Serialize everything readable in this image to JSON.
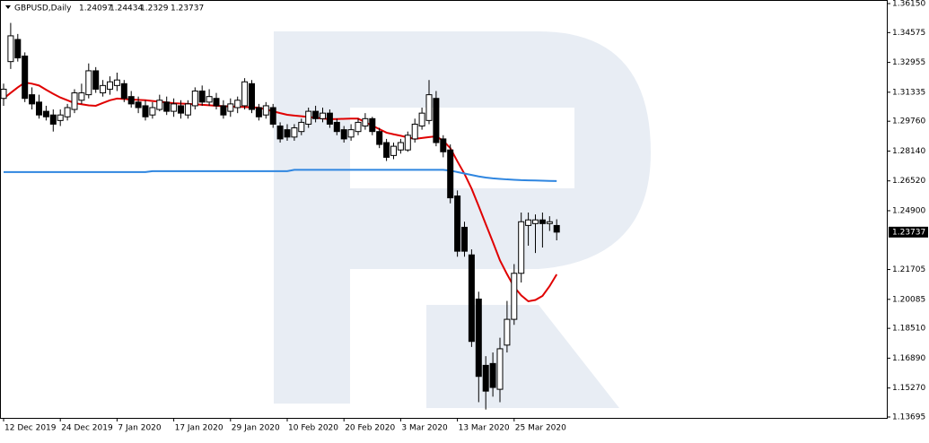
{
  "chart_data": {
    "type": "candlestick",
    "title": "GBPUSD,Daily",
    "categories": [
      "12 Dec 2019",
      null,
      null,
      null,
      null,
      null,
      null,
      null,
      "24 Dec 2019",
      null,
      null,
      null,
      null,
      null,
      null,
      null,
      "7 Jan 2020",
      null,
      null,
      null,
      null,
      null,
      null,
      null,
      "17 Jan 2020",
      null,
      null,
      null,
      null,
      null,
      null,
      null,
      "29 Jan 2020",
      null,
      null,
      null,
      null,
      null,
      null,
      null,
      "10 Feb 2020",
      null,
      null,
      null,
      null,
      null,
      null,
      null,
      "20 Feb 2020",
      null,
      null,
      null,
      null,
      null,
      null,
      null,
      "3 Mar 2020",
      null,
      null,
      null,
      null,
      null,
      null,
      null,
      "13 Mar 2020",
      null,
      null,
      null,
      null,
      null,
      null,
      null,
      "25 Mar 2020",
      null,
      null,
      null,
      null,
      null,
      null
    ],
    "open": [
      1.31,
      1.33,
      1.342,
      1.333,
      1.312,
      1.308,
      1.303,
      1.301,
      1.298,
      1.3,
      1.304,
      1.309,
      1.312,
      1.325,
      1.313,
      1.315,
      1.317,
      1.318,
      1.311,
      1.308,
      1.306,
      1.301,
      1.304,
      1.308,
      1.303,
      1.306,
      1.301,
      1.306,
      1.314,
      1.308,
      1.31,
      1.306,
      1.303,
      1.305,
      1.306,
      1.318,
      1.305,
      1.301,
      1.305,
      1.295,
      1.293,
      1.289,
      1.292,
      1.296,
      1.303,
      1.299,
      1.302,
      1.297,
      1.293,
      1.289,
      1.292,
      1.295,
      1.299,
      1.292,
      1.286,
      1.279,
      1.282,
      1.282,
      1.288,
      1.295,
      1.298,
      1.31,
      1.288,
      1.282,
      1.257,
      1.24,
      1.225,
      1.201,
      1.165,
      1.166,
      1.152,
      1.176,
      1.19,
      1.215,
      1.241,
      1.242,
      1.244,
      1.242,
      1.24097
    ],
    "high": [
      1.318,
      1.351,
      1.345,
      1.335,
      1.316,
      1.312,
      1.306,
      1.304,
      1.304,
      1.307,
      1.315,
      1.318,
      1.329,
      1.327,
      1.32,
      1.322,
      1.324,
      1.32,
      1.314,
      1.311,
      1.309,
      1.308,
      1.312,
      1.311,
      1.31,
      1.309,
      1.309,
      1.316,
      1.317,
      1.315,
      1.313,
      1.309,
      1.31,
      1.311,
      1.321,
      1.32,
      1.307,
      1.308,
      1.307,
      1.297,
      1.296,
      1.296,
      1.299,
      1.305,
      1.306,
      1.305,
      1.304,
      1.299,
      1.295,
      1.296,
      1.299,
      1.302,
      1.3,
      1.294,
      1.288,
      1.286,
      1.288,
      1.292,
      1.299,
      1.305,
      1.32,
      1.314,
      1.29,
      1.285,
      1.26,
      1.243,
      1.228,
      1.205,
      1.17,
      1.172,
      1.18,
      1.2,
      1.22,
      1.248,
      1.248,
      1.247,
      1.248,
      1.246,
      1.24434
    ],
    "low": [
      1.306,
      1.326,
      1.33,
      1.308,
      1.304,
      1.299,
      1.298,
      1.292,
      1.295,
      1.298,
      1.302,
      1.307,
      1.31,
      1.313,
      1.311,
      1.312,
      1.314,
      1.308,
      1.305,
      1.302,
      1.298,
      1.299,
      1.303,
      1.301,
      1.3,
      1.299,
      1.299,
      1.304,
      1.306,
      1.306,
      1.304,
      1.299,
      1.3,
      1.302,
      1.304,
      1.302,
      1.298,
      1.299,
      1.294,
      1.286,
      1.287,
      1.287,
      1.29,
      1.294,
      1.297,
      1.297,
      1.294,
      1.29,
      1.286,
      1.287,
      1.29,
      1.293,
      1.29,
      1.283,
      1.276,
      1.277,
      1.28,
      1.281,
      1.286,
      1.293,
      1.296,
      1.284,
      1.278,
      1.253,
      1.224,
      1.224,
      1.175,
      1.145,
      1.141,
      1.148,
      1.145,
      1.172,
      1.187,
      1.21,
      1.23,
      1.226,
      1.229,
      1.238,
      1.2329
    ],
    "close": [
      1.315,
      1.344,
      1.332,
      1.31,
      1.307,
      1.301,
      1.3,
      1.296,
      1.301,
      1.305,
      1.313,
      1.313,
      1.325,
      1.315,
      1.317,
      1.319,
      1.32,
      1.31,
      1.307,
      1.305,
      1.3,
      1.305,
      1.309,
      1.303,
      1.307,
      1.302,
      1.307,
      1.314,
      1.308,
      1.311,
      1.306,
      1.301,
      1.307,
      1.309,
      1.319,
      1.304,
      1.3,
      1.306,
      1.296,
      1.288,
      1.289,
      1.294,
      1.297,
      1.303,
      1.299,
      1.302,
      1.296,
      1.292,
      1.288,
      1.293,
      1.297,
      1.299,
      1.292,
      1.285,
      1.278,
      1.284,
      1.286,
      1.29,
      1.296,
      1.302,
      1.312,
      1.286,
      1.281,
      1.256,
      1.227,
      1.227,
      1.178,
      1.159,
      1.151,
      1.153,
      1.174,
      1.19,
      1.215,
      1.243,
      1.244,
      1.244,
      1.242,
      1.243,
      1.23737
    ],
    "series": [
      {
        "color": "#e00000",
        "values": [
          1.3099,
          1.313,
          1.316,
          1.3186,
          1.318,
          1.317,
          1.3147,
          1.3125,
          1.3105,
          1.309,
          1.3074,
          1.3068,
          1.3062,
          1.306,
          1.3075,
          1.309,
          1.3099,
          1.3097,
          1.3094,
          1.3092,
          1.309,
          1.3086,
          1.3082,
          1.3078,
          1.3074,
          1.3072,
          1.307,
          1.3068,
          1.3065,
          1.3063,
          1.306,
          1.3058,
          1.3056,
          1.3055,
          1.3053,
          1.3051,
          1.305,
          1.304,
          1.303,
          1.302,
          1.3011,
          1.3007,
          1.3003,
          1.2999,
          1.2995,
          1.2991,
          1.2987,
          1.2988,
          1.2989,
          1.299,
          1.299,
          1.2971,
          1.2952,
          1.2933,
          1.2914,
          1.2905,
          1.2897,
          1.2888,
          1.288,
          1.2885,
          1.289,
          1.2894,
          1.287,
          1.283,
          1.2758,
          1.269,
          1.261,
          1.2515,
          1.2417,
          1.232,
          1.222,
          1.2145,
          1.2076,
          1.203,
          1.1998,
          1.2005,
          1.2027,
          1.208,
          1.2144
        ]
      },
      {
        "color": "#2f86e0",
        "values": [
          1.27,
          1.27,
          1.27,
          1.27,
          1.27,
          1.27,
          1.27,
          1.27,
          1.27,
          1.27,
          1.27,
          1.27,
          1.27,
          1.27,
          1.27,
          1.27,
          1.27,
          1.27,
          1.27,
          1.27,
          1.27,
          1.2705,
          1.2705,
          1.2705,
          1.2705,
          1.2705,
          1.2705,
          1.2705,
          1.2705,
          1.2705,
          1.2705,
          1.2705,
          1.2705,
          1.2705,
          1.2705,
          1.2705,
          1.2705,
          1.2705,
          1.2705,
          1.2705,
          1.2705,
          1.2712,
          1.2712,
          1.2712,
          1.2712,
          1.2712,
          1.2712,
          1.2712,
          1.2712,
          1.2712,
          1.2712,
          1.2712,
          1.2712,
          1.2712,
          1.2712,
          1.2712,
          1.2712,
          1.2712,
          1.2712,
          1.2712,
          1.2712,
          1.2712,
          1.2712,
          1.2708,
          1.27,
          1.2692,
          1.2684,
          1.2676,
          1.267,
          1.2666,
          1.2663,
          1.266,
          1.2658,
          1.2656,
          1.2655,
          1.2654,
          1.2653,
          1.2652,
          1.2651
        ]
      }
    ],
    "ylim": [
      1.13695,
      1.3615
    ],
    "yticks": [
      {
        "value": 1.3615,
        "label": "1.36150"
      },
      1.34575,
      1.32955,
      1.31335,
      {
        "value": 1.2976,
        "label": "1.29760"
      },
      {
        "value": 1.2814,
        "label": "1.28140"
      },
      {
        "value": 1.2652,
        "label": "1.26520"
      },
      {
        "value": 1.249,
        "label": "1.24900"
      },
      1.21705,
      1.20085,
      {
        "value": 1.1851,
        "label": "1.18510"
      },
      {
        "value": 1.1689,
        "label": "1.16890"
      },
      {
        "value": 1.1527,
        "label": "1.15270"
      },
      1.13695
    ],
    "up_color": "#ffffff",
    "down_color": "#000000"
  }
}
